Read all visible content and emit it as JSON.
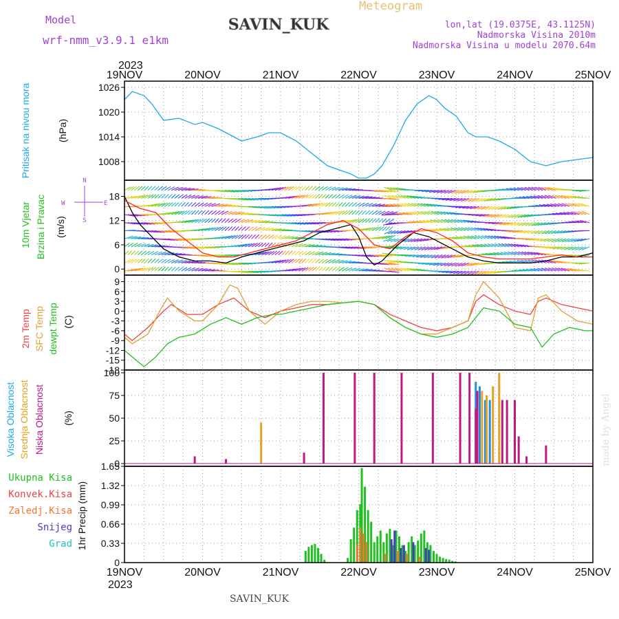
{
  "header": {
    "model_label": "Model",
    "model_name": "wrf-nmm_v3.9.1  e1km",
    "station": "SAVIN_KUK",
    "meteogram": "Meteogram",
    "lonlat": "lon,lat (19.0375E, 43.1125N)",
    "altitude": "Nadmorska Visina 2010m",
    "model_altitude": "Nadmorska Visina u modelu 2070.64m",
    "footer_station": "SAVIN_KUK",
    "watermark": "made by Angel",
    "colors": {
      "purple": "#a040d8",
      "gold": "#e8c070",
      "cyan": "#1ca9e6"
    }
  },
  "time_axis": {
    "year": "2023",
    "labels": [
      "19NOV",
      "20NOV",
      "21NOV",
      "22NOV",
      "23NOV",
      "24NOV",
      "25NOV"
    ],
    "days_span": 6
  },
  "chart_data": [
    {
      "type": "line",
      "name": "pressure",
      "ylabel_left": "Pritisak na nivou mora",
      "unit": "(hPa)",
      "yticks": [
        "1008",
        "1014",
        "1020",
        "1026"
      ],
      "ylim": [
        1003.5,
        1027.5
      ],
      "series": [
        {
          "name": "",
          "color": "#1ca9e6",
          "t": [
            0,
            0.1,
            0.25,
            0.35,
            0.5,
            0.7,
            0.9,
            1.0,
            1.2,
            1.3,
            1.5,
            1.7,
            1.85,
            2.0,
            2.2,
            2.4,
            2.6,
            2.75,
            2.9,
            3.0,
            3.1,
            3.2,
            3.3,
            3.45,
            3.6,
            3.75,
            3.9,
            4.0,
            4.1,
            4.25,
            4.4,
            4.5,
            4.65,
            4.8,
            5.0,
            5.2,
            5.4,
            5.5,
            5.6,
            5.8,
            6.0
          ],
          "values": [
            1023,
            1025,
            1024,
            1022,
            1018,
            1018.5,
            1017,
            1017.5,
            1016,
            1015,
            1013,
            1014,
            1015,
            1015,
            1013,
            1010,
            1007,
            1006,
            1005,
            1004,
            1004,
            1005,
            1007,
            1012,
            1018,
            1022,
            1024,
            1023,
            1021,
            1019,
            1015,
            1014,
            1014,
            1013,
            1011,
            1008,
            1007,
            1007.5,
            1008,
            1008.5,
            1009
          ]
        }
      ]
    },
    {
      "type": "line",
      "name": "wind",
      "ylabel_left": "10m Vjetar",
      "ylabel_left2": "Brzina i Pravac",
      "unit": "(m/s)",
      "compass_n": "N",
      "compass_e": "E",
      "compass_w": "W",
      "compass_s": "S",
      "yticks": [
        "0",
        "6",
        "12",
        "18"
      ],
      "ylim": [
        -1.5,
        22
      ],
      "series": [
        {
          "name": "",
          "color": "#000000",
          "t": [
            0,
            0.1,
            0.2,
            0.35,
            0.5,
            0.7,
            0.9,
            1.1,
            1.3,
            1.5,
            1.7,
            1.9,
            2.1,
            2.3,
            2.5,
            2.7,
            2.9,
            3.0,
            3.1,
            3.2,
            3.3,
            3.5,
            3.7,
            3.9,
            4.0,
            4.2,
            4.4,
            4.6,
            4.8,
            5.0,
            5.2,
            5.4,
            5.6,
            5.8,
            6.0
          ],
          "values": [
            18,
            14,
            11,
            8,
            5,
            3,
            2,
            2,
            1.5,
            3,
            4,
            5,
            6,
            7,
            9,
            10,
            11,
            8,
            3,
            1,
            2,
            6,
            9,
            8,
            7,
            5,
            3,
            2,
            1.5,
            1.5,
            1.5,
            2,
            3,
            3,
            4
          ]
        },
        {
          "name": "",
          "color": "#ff2020",
          "t": [
            0,
            0.2,
            0.4,
            0.6,
            0.8,
            1.0,
            1.2,
            1.4,
            1.6,
            1.8,
            2.0,
            2.2,
            2.4,
            2.6,
            2.8,
            3.0,
            3.2,
            3.4,
            3.6,
            3.8,
            4.0,
            4.2,
            4.4,
            4.6,
            4.8,
            5.0,
            5.2,
            5.4,
            5.6,
            5.8,
            6.0
          ],
          "values": [
            17,
            15,
            14,
            10,
            7,
            4,
            3,
            3,
            4,
            5,
            6,
            7,
            9,
            11,
            12,
            10,
            6,
            5,
            8,
            10,
            9,
            7,
            4,
            3,
            2.5,
            2.5,
            2.5,
            3,
            3.5,
            3,
            3
          ]
        }
      ]
    },
    {
      "type": "line",
      "name": "temperature",
      "ylabel_1": "2m Temp",
      "ylabel_2": "SFC Temp",
      "ylabel_3": "dewpt Temp",
      "unit": "(C)",
      "yticks": [
        "-18",
        "-15",
        "-12",
        "-9",
        "-6",
        "-3",
        "0",
        "3",
        "6",
        "9"
      ],
      "ylim": [
        -18,
        11
      ],
      "series": [
        {
          "name": "2m Temp",
          "color": "#f04040",
          "t": [
            0,
            0.1,
            0.3,
            0.5,
            0.6,
            0.8,
            1.0,
            1.2,
            1.4,
            1.6,
            1.8,
            2.0,
            2.2,
            2.4,
            2.6,
            2.8,
            3.0,
            3.2,
            3.4,
            3.6,
            3.8,
            4.0,
            4.2,
            4.4,
            4.5,
            4.6,
            4.8,
            5.0,
            5.2,
            5.3,
            5.4,
            5.6,
            5.8,
            6.0
          ],
          "values": [
            -7,
            -9,
            -5,
            0,
            2,
            -1,
            -1,
            2,
            4,
            0,
            -2,
            0,
            1,
            2,
            2,
            2.5,
            3,
            2,
            -1,
            -3,
            -5,
            -6,
            -5,
            -3,
            3,
            5,
            2,
            0,
            -1,
            3,
            4,
            2,
            1,
            0
          ]
        },
        {
          "name": "SFC Temp",
          "color": "#e0a030",
          "t": [
            0,
            0.1,
            0.3,
            0.45,
            0.55,
            0.7,
            0.9,
            1.0,
            1.2,
            1.35,
            1.45,
            1.6,
            1.8,
            2.0,
            2.2,
            2.4,
            2.6,
            2.8,
            3.0,
            3.2,
            3.4,
            3.6,
            3.8,
            4.0,
            4.2,
            4.4,
            4.5,
            4.6,
            4.8,
            5.0,
            5.2,
            5.3,
            5.4,
            5.6,
            5.8,
            6.0
          ],
          "values": [
            -8,
            -10,
            -7,
            0,
            4,
            0,
            -3,
            -3,
            2,
            8,
            7,
            0,
            -4,
            0,
            2,
            3,
            3,
            2.5,
            3,
            2,
            -2,
            -5,
            -7,
            -7,
            -5,
            -3,
            5,
            9,
            4,
            -5,
            -6,
            4,
            5,
            0,
            -3,
            -4
          ]
        },
        {
          "name": "dewpt Temp",
          "color": "#20c020",
          "t": [
            0,
            0.1,
            0.25,
            0.4,
            0.55,
            0.7,
            0.9,
            1.1,
            1.3,
            1.5,
            1.7,
            1.9,
            2.0,
            2.2,
            2.4,
            2.6,
            2.8,
            3.0,
            3.2,
            3.4,
            3.6,
            3.8,
            4.0,
            4.2,
            4.4,
            4.6,
            4.8,
            5.0,
            5.2,
            5.35,
            5.5,
            5.7,
            5.9,
            6.0
          ],
          "values": [
            -12,
            -14,
            -17,
            -14,
            -10,
            -8,
            -7,
            -4,
            -2,
            -4,
            -2,
            -1,
            -1,
            0,
            1,
            2,
            2.5,
            3,
            2,
            -2,
            -5,
            -7,
            -8,
            -7,
            -5,
            1,
            0,
            -4,
            -5,
            -11,
            -7,
            -5,
            -6,
            -6
          ]
        }
      ]
    },
    {
      "type": "bar",
      "name": "clouds",
      "ylabel_1": "Visoka Oblacnost",
      "ylabel_2": "Srednja Oblacnost",
      "ylabel_3": "Niska Oblacnost",
      "unit": "(%)",
      "yticks": [
        "0",
        "25",
        "50",
        "75",
        "100"
      ],
      "ylim": [
        -3,
        103
      ],
      "series": [
        {
          "name": "Visoka Oblacnost",
          "color": "#1c90e0",
          "t": [
            4.5,
            4.55,
            4.62,
            4.68
          ],
          "values": [
            90,
            85,
            70,
            70
          ]
        },
        {
          "name": "Srednja Oblacnost",
          "color": "#e8a020",
          "t": [
            1.75,
            4.58,
            4.64,
            4.72,
            4.8
          ],
          "values": [
            45,
            80,
            75,
            85,
            100
          ]
        },
        {
          "name": "Niska Oblacnost",
          "color": "#c01880",
          "t": [
            0.9,
            1.3,
            2.3,
            2.55,
            2.95,
            3.2,
            3.55,
            3.95,
            4.3,
            4.42,
            4.52,
            4.84,
            4.9,
            5.0,
            5.05,
            5.15,
            5.4,
            4.5
          ],
          "values": [
            8,
            5,
            12,
            100,
            100,
            100,
            100,
            100,
            100,
            100,
            80,
            70,
            70,
            70,
            30,
            8,
            20,
            60
          ]
        }
      ]
    },
    {
      "type": "bar",
      "name": "precip",
      "legend": [
        "Ukupna Kisa",
        "Konvek.Kisa",
        "Zaledj.Kisa",
        "Snijeg",
        "Grad"
      ],
      "legend_colors": [
        "#20c020",
        "#f04040",
        "#f07830",
        "#4040c0",
        "#20c0c0"
      ],
      "ylabel": "1hr Precip (mm)",
      "yticks": [
        "0",
        "0.33",
        "0.66",
        "0.99",
        "1.32",
        "1.65"
      ],
      "ylim": [
        0,
        1.65
      ],
      "series": [
        {
          "name": "Ukupna Kisa",
          "color": "#20c020",
          "t": [
            2.32,
            2.36,
            2.4,
            2.44,
            2.48,
            2.52,
            2.56,
            2.86,
            2.9,
            2.94,
            2.98,
            3.02,
            3.04,
            3.08,
            3.12,
            3.16,
            3.2,
            3.24,
            3.28,
            3.32,
            3.36,
            3.4,
            3.44,
            3.48,
            3.52,
            3.56,
            3.6,
            3.64,
            3.68,
            3.72,
            3.76,
            3.8,
            3.84,
            3.88,
            3.92,
            3.96,
            4.0,
            4.04,
            4.08,
            4.12,
            4.16,
            4.2,
            4.24
          ],
          "values": [
            0.2,
            0.27,
            0.3,
            0.32,
            0.25,
            0.15,
            0.05,
            0.08,
            0.4,
            0.6,
            0.9,
            1.0,
            1.62,
            1.3,
            0.9,
            0.7,
            0.35,
            0.45,
            0.55,
            0.35,
            0.5,
            0.58,
            0.3,
            0.55,
            0.45,
            0.3,
            0.2,
            0.35,
            0.45,
            0.3,
            0.38,
            0.5,
            0.55,
            0.35,
            0.3,
            0.2,
            0.15,
            0.1,
            0.08,
            0.06,
            0.05,
            0.03,
            0.02
          ]
        },
        {
          "name": "Konvek.Kisa",
          "color": "#f07830",
          "t": [
            2.98,
            3.02,
            3.06,
            3.1,
            3.34,
            3.5,
            3.62,
            3.78
          ],
          "values": [
            0.3,
            0.6,
            0.5,
            0.35,
            0.15,
            0.2,
            0.15,
            0.1
          ]
        },
        {
          "name": "Snijeg",
          "color": "#4040c0",
          "t": [
            3.42,
            3.46,
            3.54,
            3.58,
            3.7,
            3.86,
            3.9
          ],
          "values": [
            0.4,
            0.55,
            0.25,
            0.3,
            0.35,
            0.25,
            0.22
          ]
        }
      ]
    }
  ]
}
